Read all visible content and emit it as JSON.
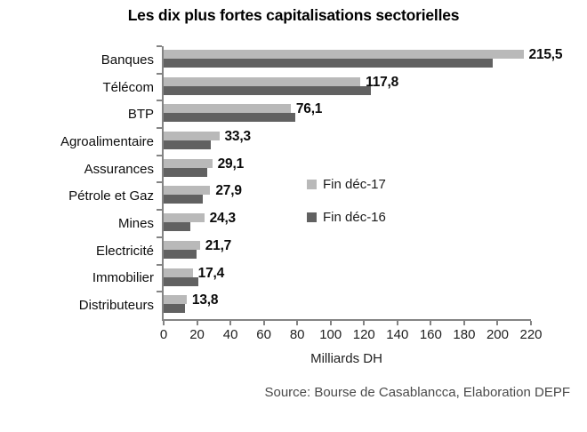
{
  "title": "Les dix plus fortes capitalisations sectorielles",
  "source": "Source: Bourse de Casablancca, Elaboration DEPF",
  "chart_data": {
    "type": "bar",
    "orientation": "horizontal",
    "title": "Les dix plus fortes capitalisations sectorielles",
    "xlabel": "Milliards DH",
    "xlim": [
      0,
      220
    ],
    "xticks": [
      0,
      20,
      40,
      60,
      80,
      100,
      120,
      140,
      160,
      180,
      200,
      220
    ],
    "grid": false,
    "legend_position": "inside-center-right",
    "categories": [
      "Banques",
      "Télécom",
      "BTP",
      "Agroalimentaire",
      "Assurances",
      "Pétrole et Gaz",
      "Mines",
      "Electricité",
      "Immobilier",
      "Distributeurs"
    ],
    "series": [
      {
        "name": "Fin déc-17",
        "color": "#b9b9b9",
        "values": [
          215.5,
          117.8,
          76.1,
          33.3,
          29.1,
          27.9,
          24.3,
          21.7,
          17.4,
          13.8
        ],
        "value_labels": [
          "215,5",
          "117,8",
          "76,1",
          "33,3",
          "29,1",
          "27,9",
          "24,3",
          "21,7",
          "17,4",
          "13,8"
        ]
      },
      {
        "name": "Fin déc-16",
        "color": "#616161",
        "values": [
          197,
          124,
          79,
          28,
          26,
          23.5,
          16,
          19.5,
          21,
          13
        ]
      }
    ]
  },
  "colors": {
    "background": "#ffffff",
    "axis": "#848484",
    "bar_dec17": "#b9b9b9",
    "bar_dec16": "#616161",
    "title_text": "#000000",
    "category_text": "#0d0d0d",
    "value_text": "#0a0a0a",
    "source_text": "#4a4a4a"
  }
}
